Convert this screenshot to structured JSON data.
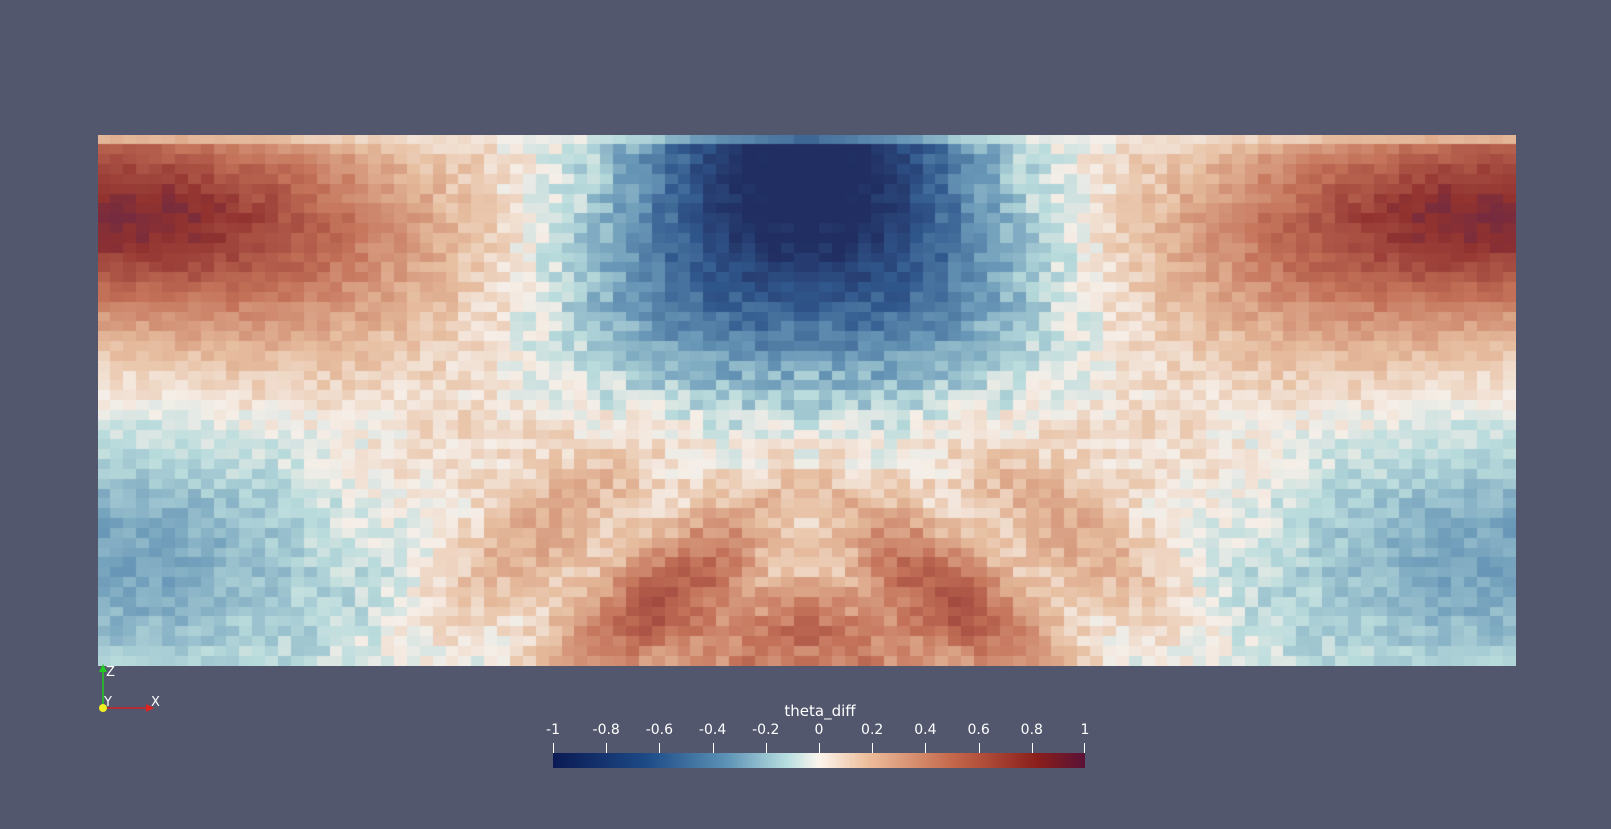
{
  "render": {
    "background": "#52576e",
    "colormap": "Cool to Warm (Extended)-like diverging: dark blue -> light cyan -> white -> peach -> red -> dark maroon",
    "colormap_stops": [
      "#0b1a54",
      "#1d4a86",
      "#5d92b6",
      "#b8dfe0",
      "#fdf5ee",
      "#edbf9d",
      "#c5694c",
      "#8b1f1c",
      "#5a1236"
    ]
  },
  "scalar_bar": {
    "title": "theta_diff",
    "tick_labels": [
      "-1",
      "-0.8",
      "-0.6",
      "-0.4",
      "-0.2",
      "0",
      "0.2",
      "0.4",
      "0.6",
      "0.8",
      "1"
    ],
    "tick_values": [
      -1,
      -0.8,
      -0.6,
      -0.4,
      -0.2,
      0,
      0.2,
      0.4,
      0.6,
      0.8,
      1
    ],
    "range": [
      -1,
      1
    ]
  },
  "orientation_axes": {
    "labels": {
      "z": "Z",
      "y": "Y",
      "x": "X"
    },
    "colors": {
      "z": "#22cc22",
      "y": "#eeee22",
      "x": "#dd2222"
    }
  }
}
